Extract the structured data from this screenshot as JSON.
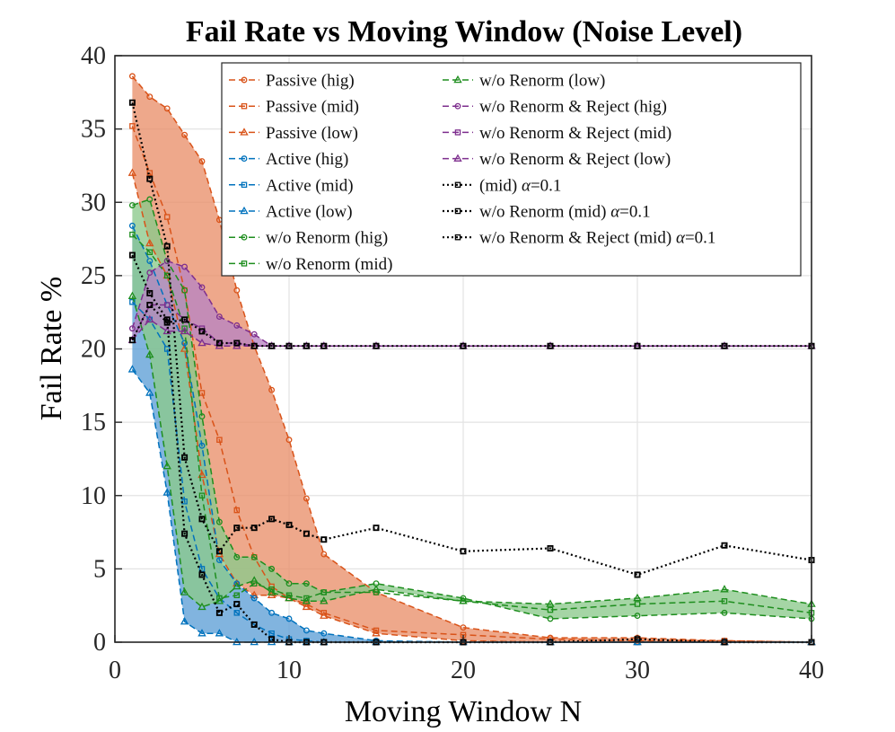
{
  "colors": {
    "passive": "#D95319",
    "passive_fill": "#E9906A",
    "active": "#0072BD",
    "active_fill": "#5E9FD6",
    "renorm": "#1E8E1E",
    "renorm_fill": "#8CC98C",
    "reject": "#7E2F8E",
    "reject_fill": "#B884C3",
    "alpha": "#000000"
  },
  "chart_data": {
    "type": "line",
    "title": "Fail Rate vs Moving Window (Noise Level)",
    "xlabel": "Moving Window N",
    "ylabel": "Fail Rate %",
    "xlim": [
      0,
      40
    ],
    "ylim": [
      0,
      40
    ],
    "xticks": [
      0,
      10,
      20,
      30,
      40
    ],
    "yticks": [
      0,
      5,
      10,
      15,
      20,
      25,
      30,
      35,
      40
    ],
    "grid": true,
    "legend_position": "top-right",
    "x": [
      1,
      2,
      3,
      4,
      5,
      6,
      7,
      8,
      9,
      10,
      11,
      12,
      15,
      20,
      25,
      30,
      35,
      40
    ],
    "bands": [
      {
        "group": "passive",
        "upper": "Passive (hig)",
        "lower": "Passive (low)"
      },
      {
        "group": "active",
        "upper": "Active (hig)",
        "lower": "Active (low)"
      },
      {
        "group": "renorm",
        "upper": "w/o Renorm (hig)",
        "lower": "w/o Renorm (low)"
      },
      {
        "group": "reject",
        "upper": "w/o Renorm & Reject (hig)",
        "lower": "w/o Renorm & Reject (low)"
      }
    ],
    "series": [
      {
        "name": "Passive (hig)",
        "group": "passive",
        "marker": "circle",
        "style": "dashed",
        "values": [
          38.6,
          37.2,
          36.4,
          34.6,
          32.8,
          28.8,
          24,
          20.2,
          17.2,
          13.8,
          9.8,
          6,
          3.4,
          1,
          0.3,
          0.3,
          0.1,
          0
        ]
      },
      {
        "name": "Passive (mid)",
        "group": "passive",
        "marker": "square",
        "style": "dashed",
        "values": [
          35.2,
          32,
          29,
          24,
          17,
          13.8,
          9,
          5.8,
          3.8,
          3,
          2.6,
          2,
          0.8,
          0.5,
          0.2,
          0.1,
          0.1,
          0
        ]
      },
      {
        "name": "Passive (low)",
        "group": "passive",
        "marker": "triangle",
        "style": "dashed",
        "values": [
          32,
          27.2,
          25,
          20,
          11.4,
          6,
          4,
          3.2,
          3.2,
          3,
          2.4,
          1.8,
          0.6,
          0.1,
          0,
          0,
          0,
          0
        ]
      },
      {
        "name": "Active (hig)",
        "group": "active",
        "marker": "circle",
        "style": "dashed",
        "values": [
          28.4,
          26,
          23,
          20.4,
          13.4,
          5.6,
          4,
          3,
          2,
          1.6,
          0.8,
          0.6,
          0.1,
          0,
          0,
          0,
          0,
          0
        ]
      },
      {
        "name": "Active (mid)",
        "group": "active",
        "marker": "square",
        "style": "dashed",
        "values": [
          23.2,
          22,
          20,
          9.6,
          5,
          3,
          2,
          1.2,
          0.6,
          0.2,
          0.1,
          0,
          0,
          0,
          0,
          0,
          0,
          0
        ]
      },
      {
        "name": "Active (low)",
        "group": "active",
        "marker": "triangle",
        "style": "dashed",
        "values": [
          18.6,
          17,
          10.2,
          1.4,
          0.6,
          0.6,
          0,
          0,
          0,
          0,
          0,
          0,
          0,
          0,
          0,
          0,
          0,
          0
        ]
      },
      {
        "name": "w/o Renorm (hig)",
        "group": "renorm",
        "marker": "circle",
        "style": "dashed",
        "values": [
          29.8,
          30.2,
          26,
          24,
          15.4,
          8.2,
          5.8,
          5.8,
          5,
          4,
          4,
          3.4,
          4,
          3,
          1.6,
          1.8,
          2,
          1.6
        ]
      },
      {
        "name": "w/o Renorm (mid)",
        "group": "renorm",
        "marker": "square",
        "style": "dashed",
        "values": [
          27.8,
          26.6,
          25,
          21.4,
          10,
          3,
          3.2,
          4,
          3.6,
          3.2,
          3,
          3.4,
          3.4,
          2.8,
          2.2,
          2.6,
          2.8,
          2
        ]
      },
      {
        "name": "w/o Renorm (low)",
        "group": "renorm",
        "marker": "triangle",
        "style": "dashed",
        "values": [
          23.6,
          19.6,
          12,
          3.4,
          2.4,
          2.8,
          3.8,
          4.2,
          3.4,
          3,
          2.8,
          2.8,
          3.6,
          2.8,
          2.6,
          3,
          3.6,
          2.6
        ]
      },
      {
        "name": "w/o Renorm & Reject (hig)",
        "group": "reject",
        "marker": "circle",
        "style": "dashed",
        "values": [
          21.4,
          25.2,
          26,
          25.6,
          24.2,
          22.2,
          21.6,
          21,
          20.2,
          20.2,
          20.2,
          20.2,
          20.2,
          20.2,
          20.2,
          20.2,
          20.2,
          20.2
        ]
      },
      {
        "name": "w/o Renorm & Reject (mid)",
        "group": "reject",
        "marker": "square",
        "style": "dashed",
        "values": [
          20.6,
          23,
          23,
          22,
          21.4,
          20.4,
          20.4,
          20.2,
          20.2,
          20.2,
          20.2,
          20.2,
          20.2,
          20.2,
          20.2,
          20.2,
          20.2,
          20.2
        ]
      },
      {
        "name": "w/o Renorm & Reject (low)",
        "group": "reject",
        "marker": "triangle",
        "style": "dashed",
        "values": [
          20.6,
          22,
          21.2,
          21.2,
          20.4,
          20.2,
          20.2,
          20.2,
          20.2,
          20.2,
          20.2,
          20.2,
          20.2,
          20.2,
          20.2,
          20.2,
          20.2,
          20.2
        ]
      },
      {
        "name": "(mid) α=0.1",
        "group": "alpha",
        "marker": "square",
        "style": "dotted",
        "values": [
          36.8,
          31.6,
          27,
          12.6,
          8.4,
          6.2,
          7.8,
          7.8,
          8.4,
          8,
          7.4,
          7,
          7.8,
          6.2,
          6.4,
          4.6,
          6.6,
          5.6
        ]
      },
      {
        "name": "w/o Renorm (mid) α=0.1",
        "group": "alpha",
        "marker": "square",
        "style": "dotted",
        "values": [
          26.4,
          23.8,
          22,
          7.4,
          4.6,
          2,
          2.6,
          1.2,
          0.2,
          0,
          0,
          0,
          0,
          0,
          0,
          0.2,
          0,
          0
        ]
      },
      {
        "name": "w/o Renorm & Reject (mid) α=0.1",
        "group": "alpha",
        "marker": "square",
        "style": "dotted",
        "values": [
          20.6,
          23,
          21.8,
          22,
          21.2,
          20.4,
          20.4,
          20.2,
          20.2,
          20.2,
          20.2,
          20.2,
          20.2,
          20.2,
          20.2,
          20.2,
          20.2,
          20.2
        ]
      }
    ],
    "legend": {
      "col1": [
        {
          "series": 0,
          "label": "Passive (hig)"
        },
        {
          "series": 1,
          "label": "Passive (mid)"
        },
        {
          "series": 2,
          "label": "Passive (low)"
        },
        {
          "series": 3,
          "label": "Active (hig)"
        },
        {
          "series": 4,
          "label": "Active (mid)"
        },
        {
          "series": 5,
          "label": "Active (low)"
        },
        {
          "series": 6,
          "label": "w/o Renorm (hig)"
        },
        {
          "series": 7,
          "label": "w/o Renorm (mid)"
        }
      ],
      "col2": [
        {
          "series": 8,
          "label": "w/o Renorm (low)"
        },
        {
          "series": 9,
          "label": "w/o Renorm & Reject (hig)"
        },
        {
          "series": 10,
          "label": "w/o Renorm & Reject (mid)"
        },
        {
          "series": 11,
          "label": "w/o Renorm & Reject (low)"
        },
        {
          "series": 12,
          "prefix": "(mid) ",
          "alpha": "α",
          "suffix": "=0.1"
        },
        {
          "series": 13,
          "prefix": "w/o Renorm (mid) ",
          "alpha": "α",
          "suffix": "=0.1"
        },
        {
          "series": 14,
          "prefix": "w/o Renorm & Reject (mid) ",
          "alpha": "α",
          "suffix": "=0.1"
        }
      ]
    }
  }
}
